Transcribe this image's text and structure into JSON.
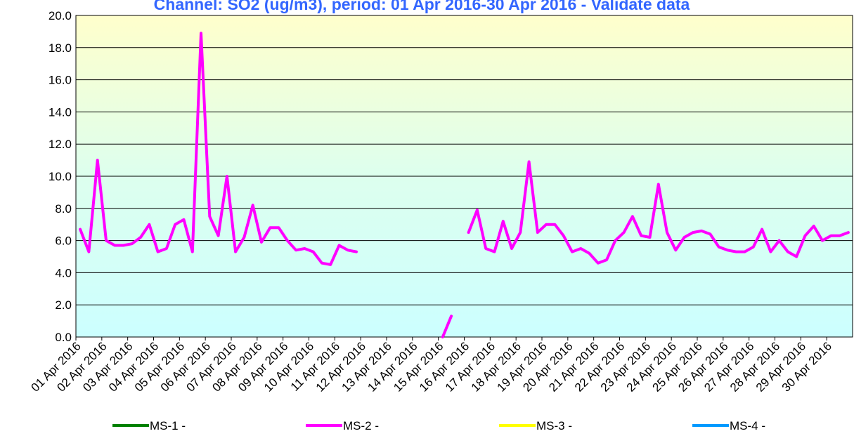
{
  "chart_data": {
    "type": "line",
    "title": "Channel: SO2 (ug/m3), period: 01 Apr 2016-30 Apr 2016 - Validate data",
    "categories": [
      "01 Apr 2016",
      null,
      null,
      "02 Apr 2016",
      null,
      null,
      "03 Apr 2016",
      null,
      null,
      "04 Apr 2016",
      null,
      null,
      "05 Apr 2016",
      null,
      null,
      "06 Apr 2016",
      null,
      null,
      "07 Apr 2016",
      null,
      null,
      "08 Apr 2016",
      null,
      null,
      "09 Apr 2016",
      null,
      null,
      "10 Apr 2016",
      null,
      null,
      "11 Apr 2016",
      null,
      null,
      "12 Apr 2016",
      null,
      null,
      "13 Apr 2016",
      null,
      null,
      "14 Apr 2016",
      null,
      null,
      "15 Apr 2016",
      null,
      null,
      "16 Apr 2016",
      null,
      null,
      "17 Apr 2016",
      null,
      null,
      "18 Apr 2016",
      null,
      null,
      "19 Apr 2016",
      null,
      null,
      "20 Apr 2016",
      null,
      null,
      "21 Apr 2016",
      null,
      null,
      "22 Apr 2016",
      null,
      null,
      "23 Apr 2016",
      null,
      null,
      "24 Apr 2016",
      null,
      null,
      "25 Apr 2016",
      null,
      null,
      "26 Apr 2016",
      null,
      null,
      "27 Apr 2016",
      null,
      null,
      "28 Apr 2016",
      null,
      null,
      "29 Apr 2016",
      null,
      null,
      "30 Apr 2016",
      null,
      null
    ],
    "series": [
      {
        "name": "MS-1 -",
        "color": "#008000"
      },
      {
        "name": "MS-2 -",
        "color": "#ff00ff",
        "values": [
          6.7,
          5.3,
          11.0,
          6.0,
          5.7,
          5.7,
          5.8,
          6.2,
          7.0,
          5.3,
          5.5,
          7.0,
          7.3,
          5.3,
          18.9,
          7.5,
          6.3,
          10.0,
          5.3,
          6.2,
          8.2,
          5.9,
          6.8,
          6.8,
          6.0,
          5.4,
          5.5,
          5.3,
          4.6,
          4.5,
          5.7,
          5.4,
          5.3,
          null,
          null,
          null,
          null,
          null,
          null,
          null,
          null,
          null,
          0.0,
          1.3,
          null,
          6.5,
          7.9,
          5.5,
          5.3,
          7.2,
          5.5,
          6.5,
          10.9,
          6.5,
          7.0,
          7.0,
          6.3,
          5.3,
          5.5,
          5.2,
          4.6,
          4.8,
          6.0,
          6.5,
          7.5,
          6.3,
          6.2,
          9.5,
          6.5,
          5.4,
          6.2,
          6.5,
          6.6,
          6.4,
          5.6,
          5.4,
          5.3,
          5.3,
          5.6,
          6.7,
          5.3,
          6.0,
          5.3,
          5.0,
          6.3,
          6.9,
          6.0,
          6.3,
          6.3,
          6.5
        ]
      },
      {
        "name": "MS-3 -",
        "color": "#ffff00"
      },
      {
        "name": "MS-4 -",
        "color": "#0099ff"
      }
    ],
    "ylim": [
      0,
      20
    ],
    "yticks": [
      {
        "value": 0,
        "label": "0.0"
      },
      {
        "value": 2,
        "label": "2.0"
      },
      {
        "value": 4,
        "label": "4.0"
      },
      {
        "value": 6,
        "label": "6.0"
      },
      {
        "value": 8,
        "label": "8.0"
      },
      {
        "value": 10,
        "label": "10.0"
      },
      {
        "value": 12,
        "label": "12.0"
      },
      {
        "value": 14,
        "label": "14.0"
      },
      {
        "value": 16,
        "label": "16.0"
      },
      {
        "value": 18,
        "label": "18.0"
      },
      {
        "value": 20,
        "label": "20.0"
      }
    ],
    "grid": true
  }
}
